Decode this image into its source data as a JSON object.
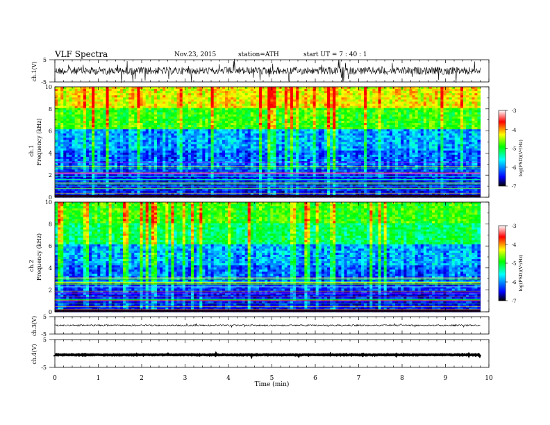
{
  "header": {
    "title": "VLF  Spectra",
    "date": "Nov.23, 2015",
    "station": "station=ATH",
    "start": "start  UT  =   7  : 40 : 1"
  },
  "chart_data": {
    "type": "heatmap",
    "panels": [
      {
        "id": "ch1-waveform",
        "type": "line",
        "ylabel": "ch.1(V)",
        "yticks": [
          "5",
          "-5"
        ],
        "ylim": [
          -5,
          5
        ]
      },
      {
        "id": "ch1-spectrogram",
        "type": "heatmap",
        "ylabel": "Frequency  (kHz)",
        "channel_label": "ch.1",
        "ylim": [
          0,
          10
        ],
        "yticks": [
          "0",
          "2",
          "4",
          "6",
          "8",
          "10"
        ],
        "colorbar": {
          "label": "log(PSD)(V²/Hz)",
          "range": [
            -7,
            -3
          ],
          "ticks": [
            "-3",
            "-4",
            "-5",
            "-6",
            "-7"
          ]
        }
      },
      {
        "id": "ch2-spectrogram",
        "type": "heatmap",
        "ylabel": "Frequency  (kHz)",
        "channel_label": "ch.2",
        "ylim": [
          0,
          10
        ],
        "yticks": [
          "0",
          "2",
          "4",
          "6",
          "8",
          "10"
        ],
        "colorbar": {
          "label": "log(PSD)(V²/Hz)",
          "range": [
            -7,
            -3
          ],
          "ticks": [
            "-3",
            "-4",
            "-5",
            "-6",
            "-7"
          ]
        }
      },
      {
        "id": "ch3-waveform",
        "type": "line",
        "ylabel": "ch.3(V)",
        "yticks": [
          "5",
          "-5"
        ],
        "ylim": [
          -5,
          5
        ]
      },
      {
        "id": "ch4-waveform",
        "type": "line",
        "ylabel": "ch.4(V)",
        "yticks": [
          "5",
          "-5"
        ],
        "ylim": [
          -5,
          5
        ]
      }
    ],
    "x": {
      "label": "Time  (min)",
      "ticks": [
        "0",
        "1",
        "2",
        "3",
        "4",
        "5",
        "6",
        "7",
        "8",
        "9",
        "10"
      ],
      "range": [
        0,
        10
      ],
      "data_end": 9.8
    },
    "colormap": [
      "#000000",
      "#0000ff",
      "#00ffff",
      "#00ff00",
      "#ffff00",
      "#ff0000",
      "#ffffff"
    ]
  }
}
